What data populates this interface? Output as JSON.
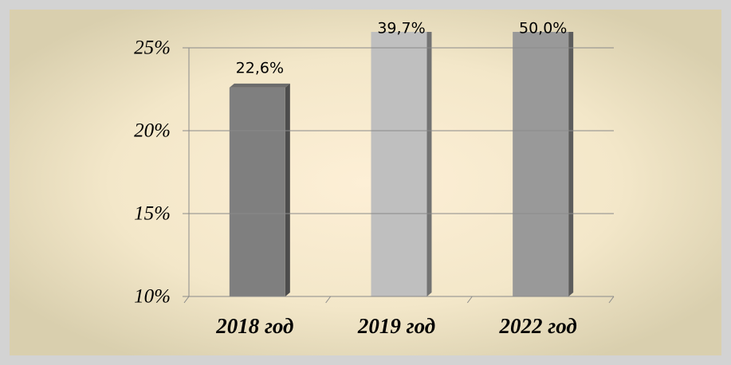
{
  "chart_data": {
    "type": "bar",
    "categories": [
      "2018 год",
      "2019 год",
      "2022 год"
    ],
    "values": [
      22.6,
      39.7,
      50.0
    ],
    "value_labels": [
      "22,6%",
      "39,7%",
      "50,0%"
    ],
    "colors": [
      "#7f7f7f",
      "#bfbfbf",
      "#999999"
    ],
    "ylim": [
      10,
      25
    ],
    "yticks": [
      {
        "value": 10,
        "label": "10%"
      },
      {
        "value": 15,
        "label": "15%"
      },
      {
        "value": 20,
        "label": "20%"
      },
      {
        "value": 25,
        "label": "25%"
      }
    ],
    "grid": true
  }
}
